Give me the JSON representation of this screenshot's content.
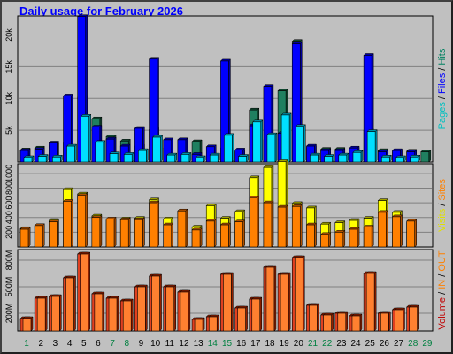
{
  "title": "Daily usage for February 2026",
  "colors": {
    "hits": "#0000ff",
    "hits_side": "#0000a0",
    "files": "#00dfff",
    "files_side": "#0090a8",
    "pages": "#208060",
    "pages_side": "#104830",
    "visits": "#ffff00",
    "visits_side": "#a0a000",
    "sites": "#ff8000",
    "sites_side": "#b05000",
    "in": "#ff8030",
    "out": "#e04020",
    "volume_side": "#902000",
    "weekend_label": "#008040",
    "weekday_label": "#000000"
  },
  "chart_data": [
    {
      "type": "bar",
      "panel": "hits-files-pages",
      "ylabel_parts": [
        {
          "text": "Pages",
          "color": "#00c0c0"
        },
        {
          "text": " / ",
          "color": "#000000"
        },
        {
          "text": "Files",
          "color": "#0000ff"
        },
        {
          "text": " / ",
          "color": "#000000"
        },
        {
          "text": "Hits",
          "color": "#008060"
        }
      ],
      "yticks": [
        "5k",
        "10k",
        "15k",
        "20k"
      ],
      "ytick_values": [
        5000,
        10000,
        15000,
        20000
      ],
      "ylim": [
        0,
        23000
      ],
      "x": [
        1,
        2,
        3,
        4,
        5,
        6,
        7,
        8,
        9,
        10,
        11,
        12,
        13,
        14,
        15,
        16,
        17,
        18,
        19,
        20,
        21,
        22,
        23,
        24,
        25,
        26,
        27,
        28,
        29
      ],
      "series": [
        {
          "name": "Hits",
          "values": [
            1900,
            2200,
            2600,
            3000,
            10200,
            6800,
            4000,
            3300,
            2500,
            5100,
            2200,
            3500,
            3200,
            1100,
            2200,
            1600,
            8200,
            3500,
            11200,
            19000,
            2300,
            2000,
            2000,
            2000,
            5000,
            1800,
            1600,
            1700,
            1600
          ]
        },
        {
          "name": "Files",
          "values": [
            1800,
            2000,
            3000,
            10400,
            22900,
            5500,
            3600,
            2500,
            5300,
            16200,
            3500,
            3500,
            1200,
            2400,
            15900,
            1900,
            5700,
            11900,
            4500,
            18600,
            2500,
            1800,
            1800,
            2200,
            16800,
            1600,
            1800,
            1600,
            null
          ]
        },
        {
          "name": "Pages",
          "values": [
            700,
            900,
            800,
            2500,
            7200,
            3100,
            1300,
            1200,
            1800,
            3900,
            1100,
            1200,
            700,
            1100,
            4200,
            900,
            6300,
            4300,
            7400,
            5600,
            1100,
            900,
            1100,
            1500,
            4800,
            800,
            700,
            800,
            null
          ]
        }
      ]
    },
    {
      "type": "bar",
      "panel": "visits-sites",
      "ylabel_parts": [
        {
          "text": "Visits",
          "color": "#e0e000"
        },
        {
          "text": " / ",
          "color": "#000000"
        },
        {
          "text": "Sites",
          "color": "#ff8000"
        }
      ],
      "yticks": [
        "200",
        "400",
        "600",
        "800",
        "1000"
      ],
      "ytick_values": [
        200,
        400,
        600,
        800,
        1000
      ],
      "ylim": [
        0,
        1130
      ],
      "x": [
        1,
        2,
        3,
        4,
        5,
        6,
        7,
        8,
        9,
        10,
        11,
        12,
        13,
        14,
        15,
        16,
        17,
        18,
        19,
        20,
        21,
        22,
        23,
        24,
        25,
        26,
        27,
        28,
        29
      ],
      "series": [
        {
          "name": "Visits",
          "values": [
            250,
            290,
            360,
            780,
            720,
            420,
            360,
            380,
            390,
            640,
            380,
            490,
            270,
            560,
            390,
            480,
            940,
            1080,
            1160,
            590,
            530,
            310,
            330,
            360,
            390,
            630,
            470,
            330,
            null
          ]
        },
        {
          "name": "Sites",
          "values": [
            240,
            290,
            340,
            620,
            700,
            400,
            380,
            370,
            370,
            600,
            300,
            490,
            230,
            350,
            300,
            340,
            670,
            600,
            540,
            550,
            300,
            170,
            200,
            240,
            270,
            470,
            410,
            350,
            null
          ]
        }
      ]
    },
    {
      "type": "bar",
      "panel": "volume",
      "ylabel_parts": [
        {
          "text": "Volume",
          "color": "#c00000"
        },
        {
          "text": "  /  ",
          "color": "#000000"
        },
        {
          "text": "IN",
          "color": "#ff8000"
        },
        {
          "text": "  /  ",
          "color": "#000000"
        },
        {
          "text": "OUT",
          "color": "#ff8000"
        }
      ],
      "yticks": [
        "200M",
        "500M",
        "800M"
      ],
      "ytick_values": [
        200,
        500,
        800
      ],
      "ylim": [
        0,
        920
      ],
      "x": [
        1,
        2,
        3,
        4,
        5,
        6,
        7,
        8,
        9,
        10,
        11,
        12,
        13,
        14,
        15,
        16,
        17,
        18,
        19,
        20,
        21,
        22,
        23,
        24,
        25,
        26,
        27,
        28,
        29
      ],
      "series": [
        {
          "name": "Out",
          "values": [
            140,
            370,
            390,
            600,
            870,
            420,
            370,
            340,
            500,
            620,
            500,
            440,
            130,
            160,
            640,
            260,
            360,
            720,
            640,
            830,
            290,
            180,
            200,
            170,
            650,
            200,
            240,
            270,
            null
          ]
        },
        {
          "name": "In",
          "values": [
            140,
            370,
            390,
            600,
            870,
            420,
            370,
            340,
            500,
            620,
            500,
            440,
            130,
            160,
            640,
            260,
            360,
            720,
            640,
            830,
            290,
            180,
            200,
            170,
            650,
            200,
            240,
            270,
            null
          ]
        }
      ]
    }
  ],
  "x_labels": [
    "1",
    "2",
    "3",
    "4",
    "5",
    "6",
    "7",
    "8",
    "9",
    "10",
    "11",
    "12",
    "13",
    "14",
    "15",
    "16",
    "17",
    "18",
    "19",
    "20",
    "21",
    "22",
    "23",
    "24",
    "25",
    "26",
    "27",
    "28",
    "29"
  ],
  "weekend_days": [
    1,
    7,
    8,
    14,
    15,
    21,
    22,
    28,
    29
  ]
}
